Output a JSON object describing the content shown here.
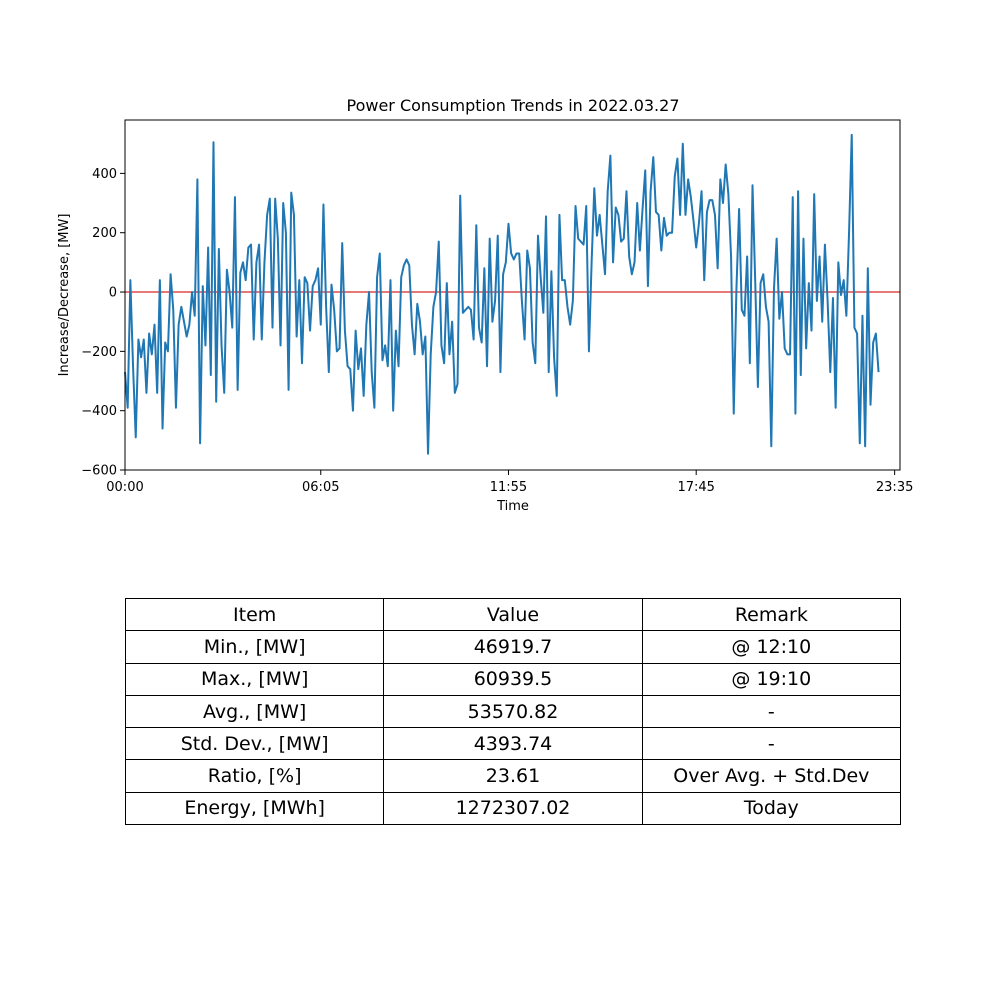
{
  "chart_data": {
    "type": "line",
    "title": "Power Consumption Trends in 2022.03.27",
    "xlabel": "Time",
    "ylabel": "Increase/Decrease, [MW]",
    "xlim": [
      0,
      289
    ],
    "ylim": [
      -600,
      580
    ],
    "x_ticks": [
      {
        "pos": 0,
        "label": "00:00"
      },
      {
        "pos": 73,
        "label": "06:05"
      },
      {
        "pos": 143,
        "label": "11:55"
      },
      {
        "pos": 213,
        "label": "17:45"
      },
      {
        "pos": 287,
        "label": "23:35"
      }
    ],
    "y_ticks": [
      -600,
      -400,
      -200,
      0,
      200,
      400
    ],
    "reference_line": {
      "y": 0,
      "color": "#d62728"
    },
    "series": [
      {
        "color": "#1f77b4",
        "values": [
          -270,
          -390,
          40,
          -250,
          -490,
          -160,
          -220,
          -160,
          -340,
          -140,
          -210,
          -110,
          -340,
          40,
          -460,
          -170,
          -200,
          60,
          -60,
          -390,
          -110,
          -50,
          -100,
          -150,
          -110,
          0,
          -80,
          380,
          -510,
          20,
          -180,
          150,
          -280,
          505,
          -370,
          145,
          -180,
          -340,
          75,
          0,
          -120,
          320,
          -330,
          65,
          100,
          40,
          150,
          160,
          -160,
          100,
          160,
          -160,
          100,
          260,
          315,
          -120,
          315,
          180,
          -180,
          300,
          200,
          -330,
          335,
          260,
          -150,
          40,
          -240,
          50,
          30,
          -130,
          20,
          40,
          80,
          -110,
          295,
          -50,
          -270,
          25,
          -60,
          -200,
          -190,
          165,
          -130,
          -250,
          -260,
          -400,
          -130,
          -260,
          -190,
          -350,
          -110,
          0,
          -270,
          -390,
          50,
          130,
          -230,
          -180,
          -250,
          40,
          -400,
          -130,
          -250,
          50,
          90,
          110,
          90,
          -110,
          -210,
          -40,
          -100,
          -210,
          -150,
          -545,
          -210,
          -50,
          0,
          170,
          -180,
          -240,
          30,
          -210,
          -100,
          -340,
          -310,
          325,
          -70,
          -60,
          -50,
          -60,
          -160,
          225,
          -120,
          -170,
          80,
          -250,
          180,
          -100,
          -30,
          190,
          -270,
          60,
          100,
          230,
          130,
          110,
          130,
          130,
          -30,
          -160,
          140,
          80,
          -170,
          -240,
          190,
          50,
          -70,
          255,
          -270,
          70,
          -220,
          -350,
          260,
          40,
          40,
          -50,
          -110,
          -30,
          290,
          180,
          170,
          160,
          290,
          -200,
          100,
          350,
          190,
          260,
          160,
          60,
          340,
          460,
          100,
          285,
          260,
          170,
          180,
          340,
          120,
          60,
          100,
          300,
          140,
          280,
          410,
          20,
          340,
          455,
          270,
          260,
          140,
          250,
          190,
          200,
          200,
          390,
          450,
          260,
          500,
          260,
          380,
          320,
          240,
          150,
          230,
          340,
          40,
          270,
          310,
          310,
          260,
          80,
          380,
          300,
          430,
          330,
          120,
          -410,
          10,
          280,
          -60,
          -80,
          120,
          -240,
          360,
          40,
          -320,
          30,
          60,
          -50,
          -100,
          -520,
          10,
          180,
          -90,
          0,
          -190,
          -210,
          -210,
          320,
          -410,
          340,
          -280,
          180,
          -190,
          30,
          -130,
          330,
          -30,
          120,
          -100,
          160,
          -30,
          -270,
          -20,
          -390,
          100,
          -10,
          40,
          -80,
          200,
          530,
          -120,
          -140,
          -510,
          -80,
          -520,
          80,
          -380,
          -170,
          -140,
          -270
        ]
      }
    ]
  },
  "table": {
    "headers": [
      "Item",
      "Value",
      "Remark"
    ],
    "rows": [
      [
        "Min., [MW]",
        "46919.7",
        "@ 12:10"
      ],
      [
        "Max., [MW]",
        "60939.5",
        "@ 19:10"
      ],
      [
        "Avg., [MW]",
        "53570.82",
        "-"
      ],
      [
        "Std. Dev., [MW]",
        "4393.74",
        "-"
      ],
      [
        "Ratio, [%]",
        "23.61",
        "Over Avg. + Std.Dev"
      ],
      [
        "Energy, [MWh]",
        "1272307.02",
        "Today"
      ]
    ]
  }
}
